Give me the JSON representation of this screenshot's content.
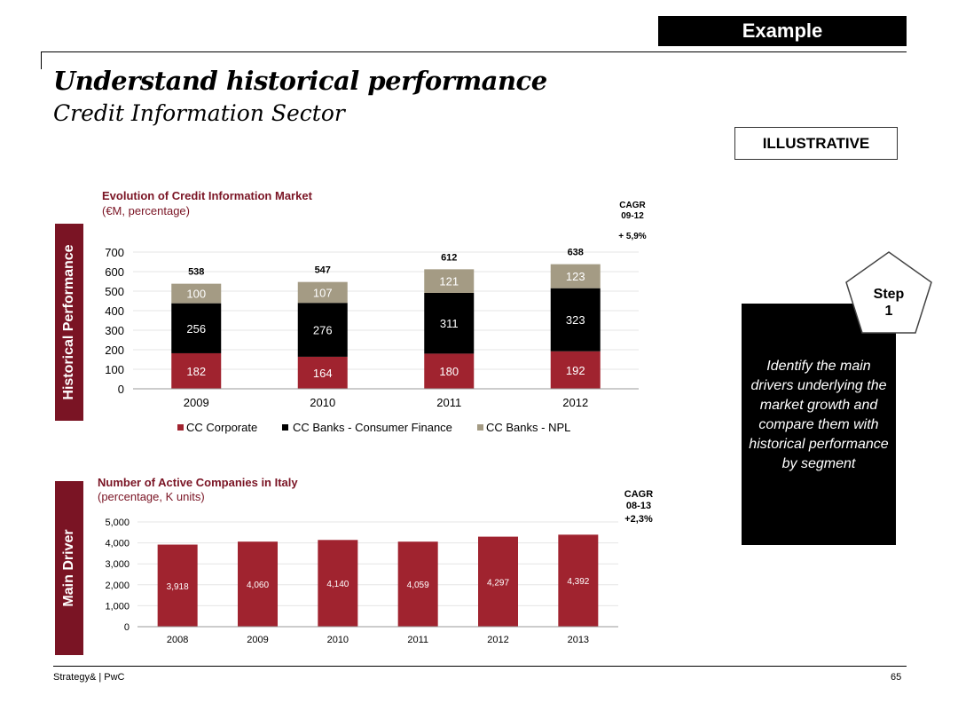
{
  "header": {
    "example_tag": "Example",
    "title": "Understand historical performance",
    "subtitle": "Credit Information Sector",
    "illustrative_label": "ILLUSTRATIVE"
  },
  "sidebars": {
    "top": "Historical Performance",
    "bottom": "Main Driver"
  },
  "step": {
    "label_line1": "Step",
    "label_line2": "1",
    "description": "Identify the main drivers underlying the market growth and compare them with historical performance by segment"
  },
  "footer": {
    "source": "Strategy& | PwC",
    "page_number": "65"
  },
  "colors": {
    "corporate": "#a0232f",
    "consumer_finance": "#000000",
    "npl": "#a49b84",
    "bar_main": "#a0232f",
    "sidebar": "#7a1424",
    "title_red": "#7a1424"
  },
  "chart_data": [
    {
      "type": "bar",
      "stacked": true,
      "title": "Evolution of Credit Information Market",
      "subtitle": "(€M, percentage)",
      "categories": [
        "2009",
        "2010",
        "2011",
        "2012"
      ],
      "series": [
        {
          "name": "CC Corporate",
          "values": [
            182,
            164,
            180,
            192
          ]
        },
        {
          "name": "CC Banks - Consumer Finance",
          "values": [
            256,
            276,
            311,
            323
          ]
        },
        {
          "name": "CC Banks - NPL",
          "values": [
            100,
            107,
            121,
            123
          ]
        }
      ],
      "totals": [
        "538",
        "547",
        "612",
        "638"
      ],
      "y_ticks": [
        "0",
        "100",
        "200",
        "300",
        "400",
        "500",
        "600",
        "700"
      ],
      "ylim": [
        0,
        700
      ],
      "cagr_label_line1": "CAGR",
      "cagr_label_line2": "09-12",
      "cagr_value": "+ 5,9%",
      "legend_position": "bottom"
    },
    {
      "type": "bar",
      "title": "Number of Active Companies in Italy",
      "subtitle": "(percentage, K units)",
      "categories": [
        "2008",
        "2009",
        "2010",
        "2011",
        "2012",
        "2013"
      ],
      "values": [
        3918,
        4060,
        4140,
        4059,
        4297,
        4392
      ],
      "value_labels": [
        "3,918",
        "4,060",
        "4,140",
        "4,059",
        "4,297",
        "4,392"
      ],
      "y_ticks": [
        "0",
        "1,000",
        "2,000",
        "3,000",
        "4,000",
        "5,000"
      ],
      "ylim": [
        0,
        5000
      ],
      "cagr_label_line1": "CAGR",
      "cagr_label_line2": "08-13",
      "cagr_value": "+2,3%"
    }
  ]
}
